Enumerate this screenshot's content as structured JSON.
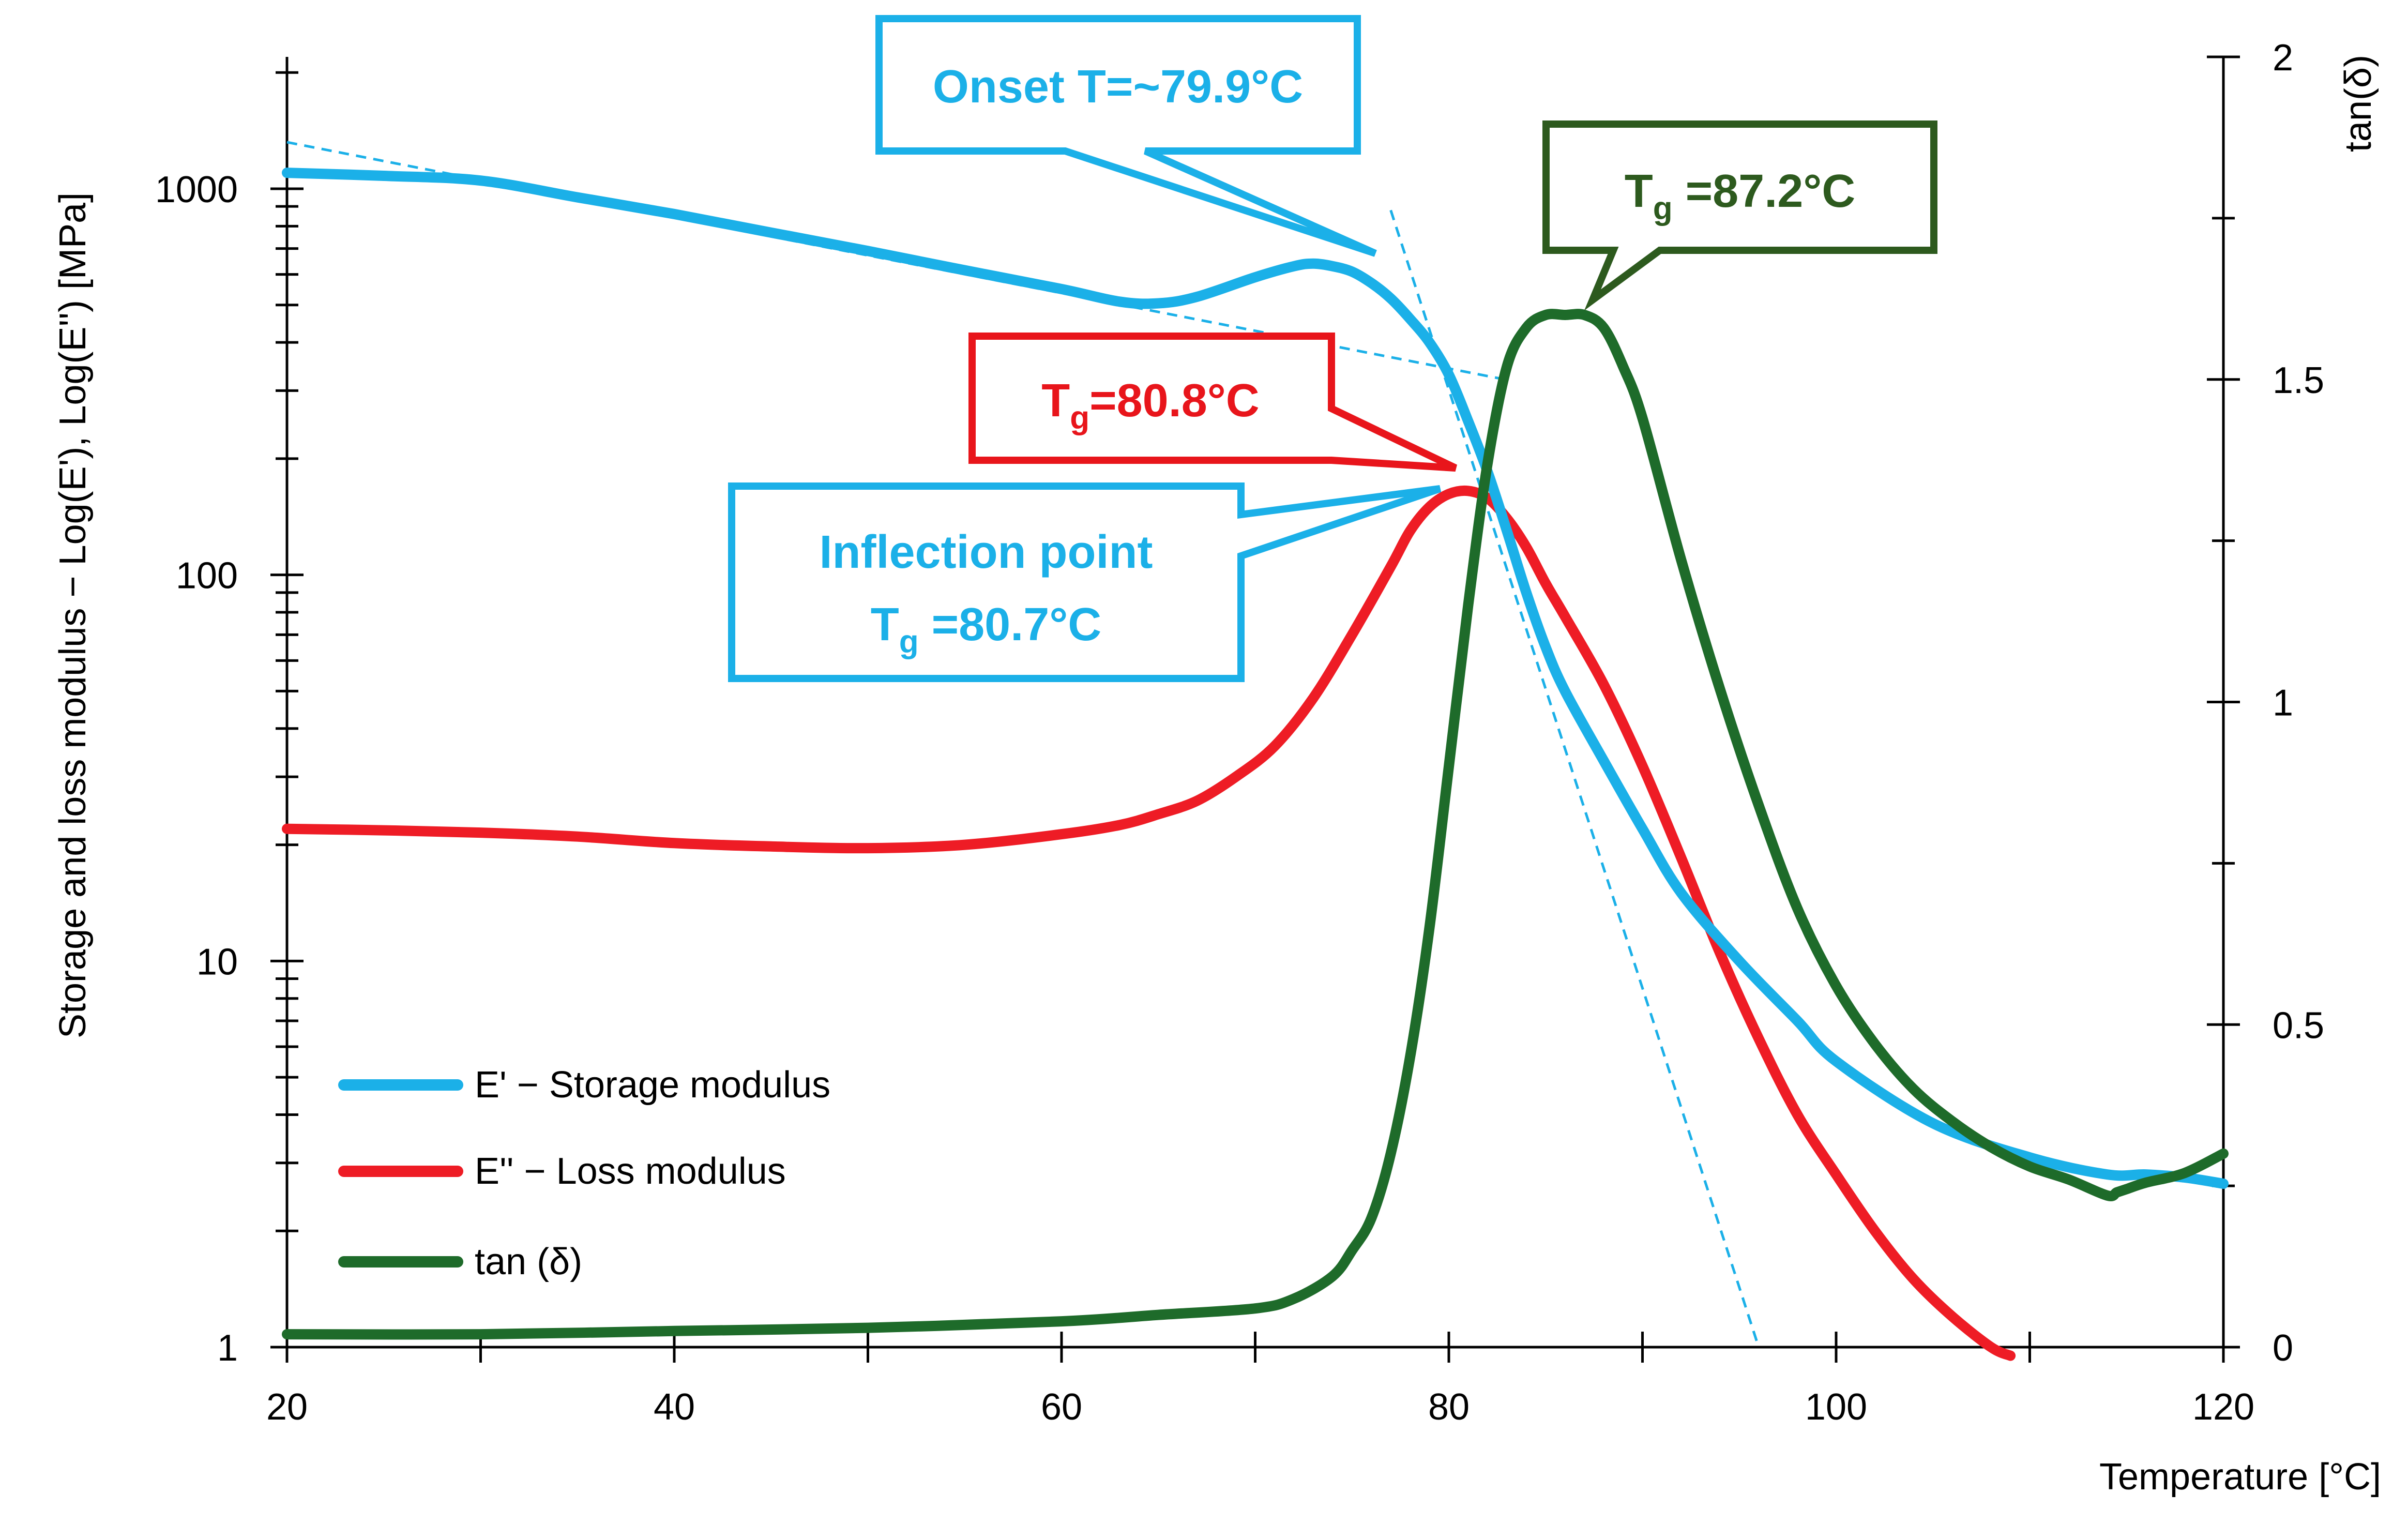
{
  "chart_data": {
    "type": "line",
    "xlabel": "Temperature  [°C]",
    "ylabel": "Storage and loss modulus − Log(E'), Log(E'') [MPa]",
    "y2label": "tan(δ)",
    "xlim": [
      20,
      120
    ],
    "ylim": [
      1,
      2300
    ],
    "yscale": "log",
    "y2lim": [
      0,
      2
    ],
    "x_ticks": [
      "20",
      "40",
      "60",
      "80",
      "100",
      "120"
    ],
    "y_ticks": [
      "1",
      "10",
      "100",
      "1000"
    ],
    "y2_ticks": [
      "0",
      "0.5",
      "1",
      "1.5",
      "2"
    ],
    "legend_position": "bottom-left",
    "series": [
      {
        "name": "E' − Storage modulus",
        "axis": "left",
        "color": "#1BB0E8",
        "x": [
          20,
          25,
          30,
          35,
          40,
          45,
          50,
          55,
          60,
          63,
          65,
          67,
          70,
          72,
          73,
          74,
          75,
          76,
          77,
          78,
          79,
          80,
          81,
          82,
          83,
          84,
          85,
          86,
          88,
          90,
          92,
          95,
          98,
          100,
          105,
          110,
          114,
          116,
          118,
          120
        ],
        "values": [
          1100,
          1080,
          1050,
          950,
          860,
          770,
          690,
          615,
          550,
          510,
          505,
          525,
          590,
          630,
          640,
          630,
          610,
          570,
          520,
          460,
          400,
          330,
          250,
          185,
          130,
          90,
          65,
          50,
          33,
          22,
          15,
          10,
          7,
          5.5,
          3.8,
          3.1,
          2.8,
          2.8,
          2.75,
          2.65
        ]
      },
      {
        "name": "E'' − Loss modulus",
        "axis": "left",
        "color": "#EE1C25",
        "x": [
          20,
          25,
          30,
          35,
          40,
          45,
          50,
          55,
          60,
          63,
          65,
          67,
          69,
          71,
          73,
          75,
          77,
          78,
          79,
          80,
          81,
          82,
          83,
          84,
          85,
          86,
          88,
          90,
          92,
          94,
          96,
          98,
          100,
          102,
          104,
          106,
          108,
          109
        ],
        "values": [
          22,
          21.8,
          21.5,
          21,
          20.2,
          19.8,
          19.6,
          20,
          21.3,
          22.5,
          24,
          26,
          30,
          36,
          48,
          70,
          105,
          130,
          150,
          162,
          165,
          158,
          140,
          118,
          95,
          78,
          52,
          32,
          18.5,
          10.5,
          6.3,
          4.0,
          2.8,
          2.0,
          1.5,
          1.2,
          1.0,
          0.95
        ]
      },
      {
        "name": "tan (δ)",
        "axis": "right",
        "color": "#1E6B2A",
        "x": [
          20,
          30,
          40,
          50,
          60,
          65,
          70,
          72,
          74,
          75,
          76,
          77,
          78,
          79,
          80,
          81,
          82,
          83,
          84,
          85,
          86,
          87,
          88,
          89,
          90,
          92,
          94,
          96,
          98,
          100,
          102,
          104,
          106,
          108,
          110,
          112,
          114,
          114.5,
          115,
          116,
          118,
          120
        ],
        "values": [
          0.02,
          0.02,
          0.025,
          0.03,
          0.04,
          0.05,
          0.06,
          0.075,
          0.11,
          0.15,
          0.2,
          0.3,
          0.45,
          0.65,
          0.9,
          1.15,
          1.37,
          1.52,
          1.58,
          1.6,
          1.6,
          1.6,
          1.58,
          1.52,
          1.44,
          1.22,
          1.02,
          0.84,
          0.68,
          0.56,
          0.47,
          0.4,
          0.35,
          0.31,
          0.28,
          0.26,
          0.235,
          0.24,
          0.245,
          0.255,
          0.27,
          0.3
        ]
      }
    ],
    "tangent_lines": [
      {
        "name": "glassy-tangent",
        "color": "#1BB0E8",
        "x": [
          20,
          83
        ],
        "values": [
          1320,
          320
        ]
      },
      {
        "name": "transition-tangent",
        "color": "#1BB0E8",
        "x": [
          77,
          96
        ],
        "values": [
          880,
          1
        ]
      }
    ],
    "annotations": [
      {
        "name": "onset",
        "color": "#1BB0E8",
        "text": "Onset T=~79.9°C",
        "pointer": {
          "x": 78,
          "y": 700
        }
      },
      {
        "name": "tan-delta-tg",
        "color": "#2D5A1E",
        "lead": "T",
        "sub": "g",
        "tail": " =87.2°C",
        "pointer": {
          "x": 86.5,
          "y": 1.65
        }
      },
      {
        "name": "loss-modulus-tg",
        "color": "#E8151B",
        "lead": "T",
        "sub": "g",
        "tail": "=80.8°C",
        "pointer": {
          "x": 80.5,
          "y": 185
        }
      },
      {
        "name": "inflection",
        "color": "#1BB0E8",
        "line1": "Inflection point",
        "lead": "T",
        "sub": "g",
        "tail": " =80.7°C",
        "pointer": {
          "x": 80,
          "y": 165
        }
      }
    ]
  }
}
